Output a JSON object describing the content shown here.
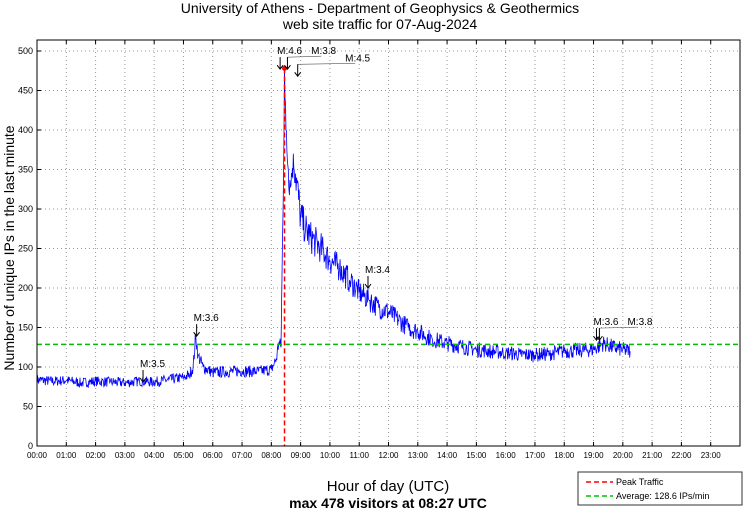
{
  "chart_data": {
    "type": "line",
    "title": "University of Athens - Department of Geophysics & Geothermics",
    "subtitle": "web site traffic for 07-Aug-2024",
    "xlabel": "Hour of day (UTC)",
    "xlabel2": "max 478 visitors at 08:27 UTC",
    "ylabel": "Number of unique IPs in the last minute",
    "xlim": [
      0,
      24
    ],
    "ylim": [
      0,
      520
    ],
    "grid": true,
    "yticks": [
      0,
      50,
      100,
      150,
      200,
      250,
      300,
      350,
      400,
      450,
      500
    ],
    "xtick_labels": [
      "00:00",
      "01:00",
      "02:00",
      "03:00",
      "04:00",
      "05:00",
      "06:00",
      "07:00",
      "08:00",
      "09:00",
      "10:00",
      "11:00",
      "12:00",
      "13:00",
      "14:00",
      "15:00",
      "16:00",
      "17:00",
      "18:00",
      "19:00",
      "20:00",
      "21:00",
      "22:00",
      "23:00"
    ],
    "series": [
      {
        "name": "Traffic",
        "color": "#0000ff",
        "x": [
          0,
          0.5,
          1,
          1.5,
          2,
          2.5,
          3,
          3.5,
          4,
          4.5,
          5,
          5.2,
          5.33,
          5.42,
          5.5,
          5.67,
          6,
          6.5,
          7,
          7.5,
          8,
          8.17,
          8.25,
          8.33,
          8.4,
          8.45,
          8.5,
          8.58,
          8.67,
          8.75,
          8.83,
          9,
          9.17,
          9.33,
          9.5,
          9.67,
          10,
          10.33,
          10.67,
          11,
          11.33,
          11.67,
          12,
          12.33,
          12.67,
          13,
          13.5,
          14,
          14.5,
          15,
          15.5,
          16,
          16.5,
          17,
          17.5,
          18,
          18.5,
          19,
          19.33,
          19.67,
          20,
          20.25
        ],
        "y": [
          84,
          82,
          83,
          80,
          82,
          81,
          80,
          82,
          81,
          84,
          87,
          90,
          100,
          140,
          115,
          100,
          93,
          94,
          95,
          94,
          97,
          110,
          130,
          125,
          300,
          478,
          400,
          350,
          330,
          370,
          345,
          290,
          275,
          265,
          258,
          252,
          235,
          225,
          210,
          195,
          185,
          175,
          170,
          160,
          150,
          145,
          135,
          130,
          126,
          122,
          120,
          118,
          116,
          115,
          117,
          120,
          121,
          122,
          130,
          125,
          122,
          120
        ]
      }
    ],
    "reference_lines": [
      {
        "name": "Peak Traffic",
        "orientation": "vertical",
        "x": 8.45,
        "color": "#ff0000"
      },
      {
        "name": "Average: 128.6 IPs/min",
        "orientation": "horizontal",
        "y": 128.6,
        "color": "#00c000"
      }
    ],
    "legend": {
      "placement": "bottom-right",
      "entries": [
        "Peak Traffic",
        "Average: 128.6 IPs/min"
      ]
    },
    "annotations": [
      {
        "text": "M:3.5",
        "x": 3.62,
        "y": 100
      },
      {
        "text": "M:3.6",
        "x": 5.45,
        "y": 158
      },
      {
        "text": "M:4.6",
        "x": 8.3,
        "y": 496
      },
      {
        "text": "M:3.8",
        "x": 8.55,
        "y": 496
      },
      {
        "text": "M:4.5",
        "x": 8.9,
        "y": 487
      },
      {
        "text": "M:3.4",
        "x": 11.3,
        "y": 219
      },
      {
        "text": "M:3.6",
        "x": 19.1,
        "y": 153
      },
      {
        "text": "M:3.8",
        "x": 19.2,
        "y": 153
      }
    ]
  }
}
